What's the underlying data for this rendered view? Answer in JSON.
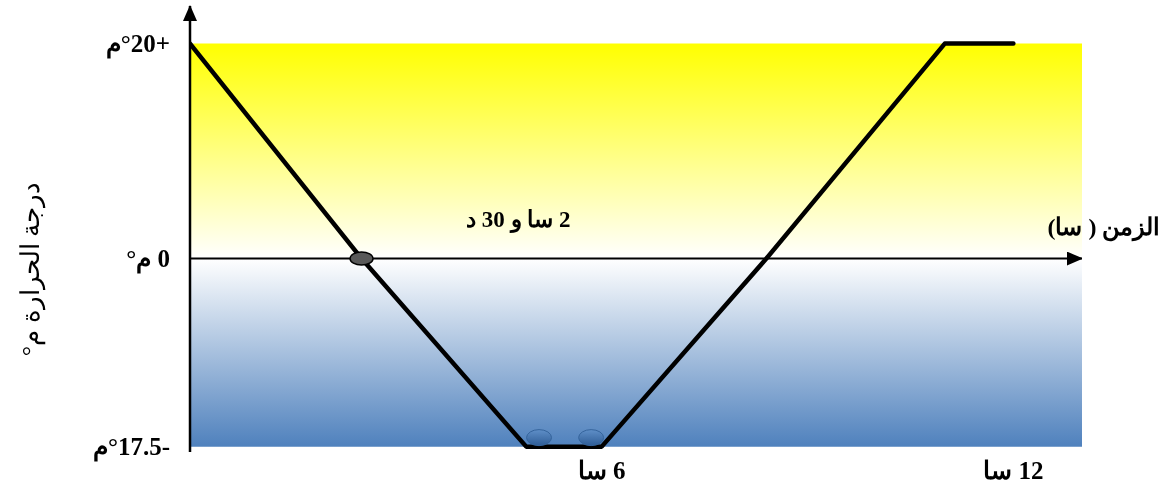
{
  "chart_data": {
    "type": "line",
    "xlabel": "الزمن ( سا)",
    "ylabel": "درجة الحرارة م°",
    "x": [
      0,
      2.5,
      4.9,
      6,
      8.4,
      11,
      12
    ],
    "series": [
      {
        "color": "#000000",
        "values": [
          20,
          0,
          -17.5,
          -17.5,
          0,
          20,
          20
        ]
      },
      {
        "type": "scatter",
        "color": "#595959",
        "x": [
          2.5
        ],
        "values": [
          0
        ],
        "marker": "circle"
      }
    ],
    "xlim": [
      0,
      13
    ],
    "ylim": [
      -18,
      23.5
    ],
    "xticks": [
      {
        "value": 6,
        "label": "6 سا"
      },
      {
        "value": 12,
        "label": "12 سا"
      }
    ],
    "yticks": [
      {
        "value": 20,
        "label": "+°20م"
      },
      {
        "value": 0,
        "label": "0 م°"
      },
      {
        "value": -17.5,
        "label": "-°17.5م"
      }
    ],
    "bands": [
      {
        "axis": "y",
        "from": 0,
        "to": 20,
        "color": "#ffff00"
      },
      {
        "axis": "y",
        "from": -17.5,
        "to": 0,
        "color": "#4f81bd"
      }
    ],
    "annotations": [
      "2 سا و 30 د"
    ]
  }
}
